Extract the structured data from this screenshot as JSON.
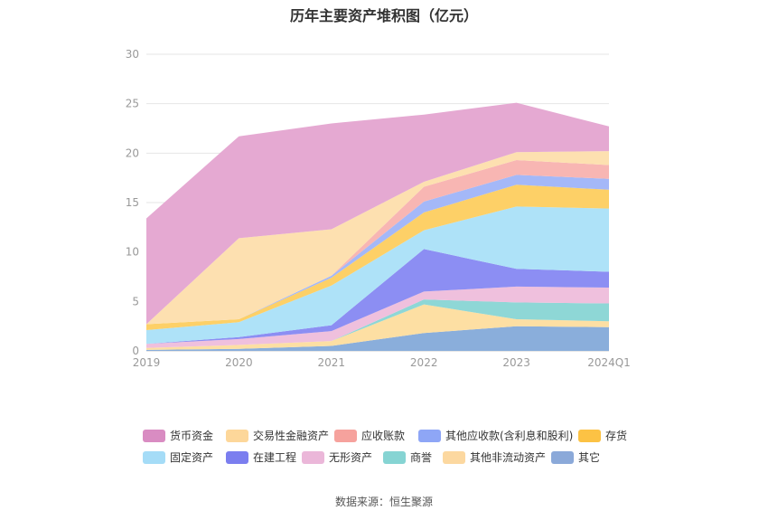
{
  "chart_data": {
    "type": "area",
    "stacked": true,
    "title": "历年主要资产堆积图（亿元）",
    "xlabel": "",
    "ylabel": "",
    "categories": [
      "2019",
      "2020",
      "2021",
      "2022",
      "2023",
      "2024Q1"
    ],
    "ylim": [
      0,
      30
    ],
    "yticks": [
      0,
      5,
      10,
      15,
      20,
      25,
      30
    ],
    "grid": true,
    "legend_position": "bottom",
    "series": [
      {
        "name": "其它",
        "color": "#8aaedb",
        "values": [
          0.1,
          0.2,
          0.5,
          1.8,
          2.5,
          2.4
        ]
      },
      {
        "name": "其他非流动资产",
        "color": "#fddfa3",
        "values": [
          0.2,
          0.4,
          0.5,
          2.9,
          0.7,
          0.6
        ]
      },
      {
        "name": "商誉",
        "color": "#8ed7d6",
        "values": [
          0.0,
          0.0,
          0.0,
          0.5,
          1.7,
          1.8
        ]
      },
      {
        "name": "无形资产",
        "color": "#efc0dd",
        "values": [
          0.4,
          0.6,
          1.0,
          0.8,
          1.6,
          1.6
        ]
      },
      {
        "name": "在建工程",
        "color": "#8c8ef3",
        "values": [
          0.0,
          0.2,
          0.6,
          4.3,
          1.8,
          1.6
        ]
      },
      {
        "name": "固定资产",
        "color": "#aee2f8",
        "values": [
          1.4,
          1.5,
          4.0,
          1.9,
          6.3,
          6.4
        ]
      },
      {
        "name": "存货",
        "color": "#fdd067",
        "values": [
          0.6,
          0.3,
          0.8,
          1.8,
          2.2,
          1.9
        ]
      },
      {
        "name": "其他应收款(含利息和股利)",
        "color": "#a4b8f8",
        "values": [
          0.0,
          0.0,
          0.2,
          1.1,
          1.0,
          1.1
        ]
      },
      {
        "name": "应收账款",
        "color": "#f8b6b3",
        "values": [
          0.0,
          0.0,
          0.0,
          1.5,
          1.5,
          1.4
        ]
      },
      {
        "name": "交易性金融资产",
        "color": "#fde0b0",
        "values": [
          0.0,
          8.2,
          4.7,
          0.5,
          0.8,
          1.4
        ]
      },
      {
        "name": "货币资金",
        "color": "#e5a9d2",
        "values": [
          10.7,
          10.3,
          10.7,
          6.8,
          5.0,
          2.5
        ]
      }
    ],
    "legend_order": [
      "货币资金",
      "交易性金融资产",
      "应收账款",
      "其他应收款(含利息和股利)",
      "存货",
      "固定资产",
      "在建工程",
      "无形资产",
      "商誉",
      "其他非流动资产",
      "其它"
    ],
    "legend_colors": {
      "货币资金": "#d98cc2",
      "交易性金融资产": "#fdd79a",
      "应收账款": "#f6a29d",
      "其他应收款(含利息和股利)": "#8ea6f6",
      "存货": "#fcc244",
      "固定资产": "#a5dcf7",
      "在建工程": "#7b7eef",
      "无形资产": "#ebb7d9",
      "商誉": "#86d4d3",
      "其他非流动资产": "#fcd8a0",
      "其它": "#8ba9d9"
    }
  },
  "source_text": "数据来源：恒生聚源"
}
